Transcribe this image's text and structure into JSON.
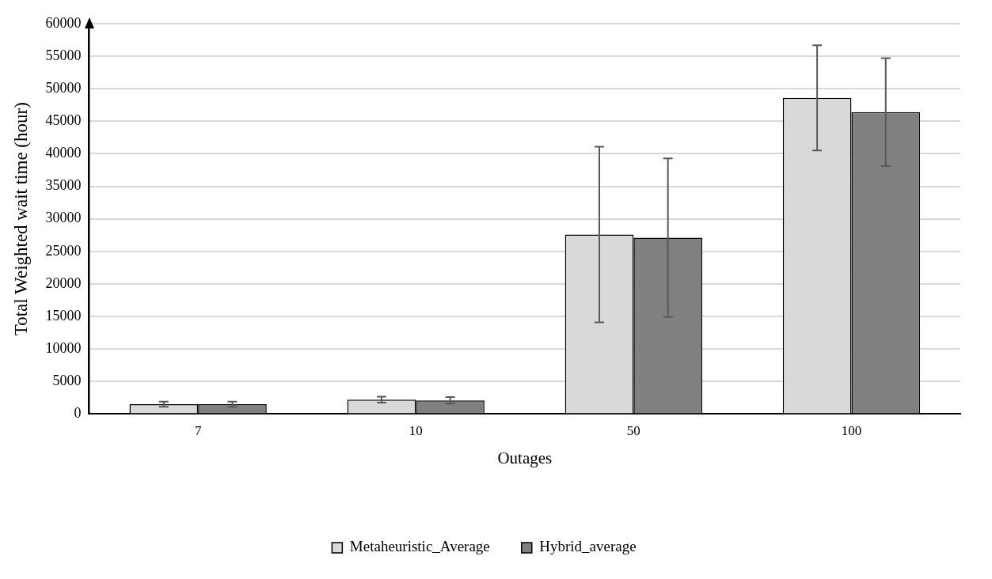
{
  "chart_data": {
    "type": "bar",
    "xlabel": "Outages",
    "ylabel": "Total Weighted wait time (hour)",
    "categories": [
      "7",
      "10",
      "50",
      "100"
    ],
    "series": [
      {
        "name": "Metaheuristic_Average",
        "color": "#d9d9d9",
        "values": [
          1500,
          2200,
          27600,
          48600
        ],
        "errors": [
          400,
          450,
          13500,
          8100
        ]
      },
      {
        "name": "Hybrid_average",
        "color": "#808080",
        "values": [
          1500,
          2100,
          27100,
          46400
        ],
        "errors": [
          400,
          500,
          12200,
          8300
        ]
      }
    ],
    "ylim": [
      0,
      60000
    ],
    "yticks": [
      0,
      5000,
      10000,
      15000,
      20000,
      25000,
      30000,
      35000,
      40000,
      45000,
      50000,
      55000,
      60000
    ],
    "grid": "y",
    "legend": "bottom"
  }
}
